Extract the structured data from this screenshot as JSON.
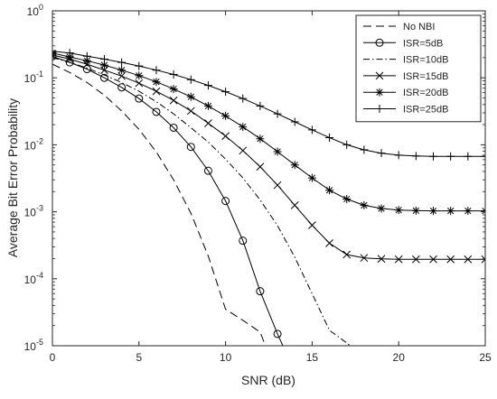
{
  "chart_data": {
    "type": "line",
    "title": "",
    "xlabel": "SNR (dB)",
    "ylabel": "Average Bit Error Probability",
    "xlim": [
      0,
      25
    ],
    "ylim": [
      1e-05,
      1
    ],
    "yscale": "log",
    "grid": false,
    "legend_position": "top-right",
    "x_ticks": [
      0,
      5,
      10,
      15,
      20,
      25
    ],
    "y_ticks": [
      {
        "value": 1e-05,
        "base": "10",
        "exp": "-5"
      },
      {
        "value": 0.0001,
        "base": "10",
        "exp": "-4"
      },
      {
        "value": 0.001,
        "base": "10",
        "exp": "-3"
      },
      {
        "value": 0.01,
        "base": "10",
        "exp": "-2"
      },
      {
        "value": 0.1,
        "base": "10",
        "exp": "-1"
      },
      {
        "value": 1,
        "base": "10",
        "exp": "0"
      }
    ],
    "x": [
      0,
      1,
      2,
      3,
      4,
      5,
      6,
      7,
      8,
      9,
      10,
      11,
      12,
      13,
      14,
      15,
      16,
      17,
      18,
      19,
      20,
      21,
      22,
      23,
      24,
      25
    ],
    "series": [
      {
        "name": "No NBI",
        "line_style": "dashed",
        "marker": "none",
        "x": [
          0,
          1,
          2,
          3,
          4,
          5,
          6,
          7,
          8,
          9,
          10,
          11,
          12,
          12.3
        ],
        "values": [
          0.16,
          0.12,
          0.085,
          0.055,
          0.032,
          0.017,
          0.0078,
          0.003,
          0.00095,
          0.00022,
          3.5e-05,
          2.4e-05,
          1.6e-05,
          1e-05
        ]
      },
      {
        "name": "ISR=5dB",
        "line_style": "solid",
        "marker": "circle",
        "x": [
          0,
          1,
          2,
          3,
          4,
          5,
          6,
          7,
          8,
          9,
          10,
          11,
          12,
          13,
          14
        ],
        "values": [
          0.21,
          0.17,
          0.135,
          0.1,
          0.072,
          0.049,
          0.031,
          0.018,
          0.0093,
          0.0041,
          0.00145,
          0.00037,
          6.5e-05,
          1.5e-05,
          4e-06
        ]
      },
      {
        "name": "ISR=10dB",
        "line_style": "dashdot",
        "marker": "none",
        "x": [
          0,
          1,
          2,
          3,
          4,
          5,
          6,
          7,
          8,
          9,
          10,
          11,
          12,
          13,
          14,
          15,
          16,
          17,
          17.2
        ],
        "values": [
          0.2,
          0.17,
          0.14,
          0.11,
          0.085,
          0.063,
          0.044,
          0.029,
          0.018,
          0.011,
          0.0061,
          0.0032,
          0.0015,
          0.00062,
          0.00021,
          6e-05,
          1.7e-05,
          1.1e-05,
          1e-05
        ]
      },
      {
        "name": "ISR=15dB",
        "line_style": "solid",
        "marker": "x",
        "values": [
          0.22,
          0.19,
          0.16,
          0.13,
          0.106,
          0.083,
          0.063,
          0.046,
          0.032,
          0.021,
          0.0135,
          0.0082,
          0.0047,
          0.0025,
          0.00125,
          0.00063,
          0.00034,
          0.00023,
          0.000205,
          0.000198,
          0.000195,
          0.000195,
          0.000195,
          0.000195,
          0.000195,
          0.000195
        ]
      },
      {
        "name": "ISR=20dB",
        "line_style": "solid",
        "marker": "asterisk",
        "values": [
          0.235,
          0.205,
          0.18,
          0.155,
          0.13,
          0.108,
          0.087,
          0.068,
          0.052,
          0.038,
          0.027,
          0.0185,
          0.0123,
          0.0079,
          0.005,
          0.0032,
          0.0021,
          0.00155,
          0.00125,
          0.00112,
          0.00106,
          0.00104,
          0.00103,
          0.00103,
          0.00103,
          0.00103
        ]
      },
      {
        "name": "ISR=25dB",
        "line_style": "solid",
        "marker": "plus",
        "values": [
          0.25,
          0.235,
          0.21,
          0.19,
          0.17,
          0.15,
          0.13,
          0.112,
          0.094,
          0.077,
          0.062,
          0.049,
          0.038,
          0.029,
          0.022,
          0.0167,
          0.0128,
          0.01,
          0.0084,
          0.0075,
          0.007,
          0.0068,
          0.0067,
          0.0067,
          0.0067,
          0.0067
        ]
      }
    ]
  }
}
